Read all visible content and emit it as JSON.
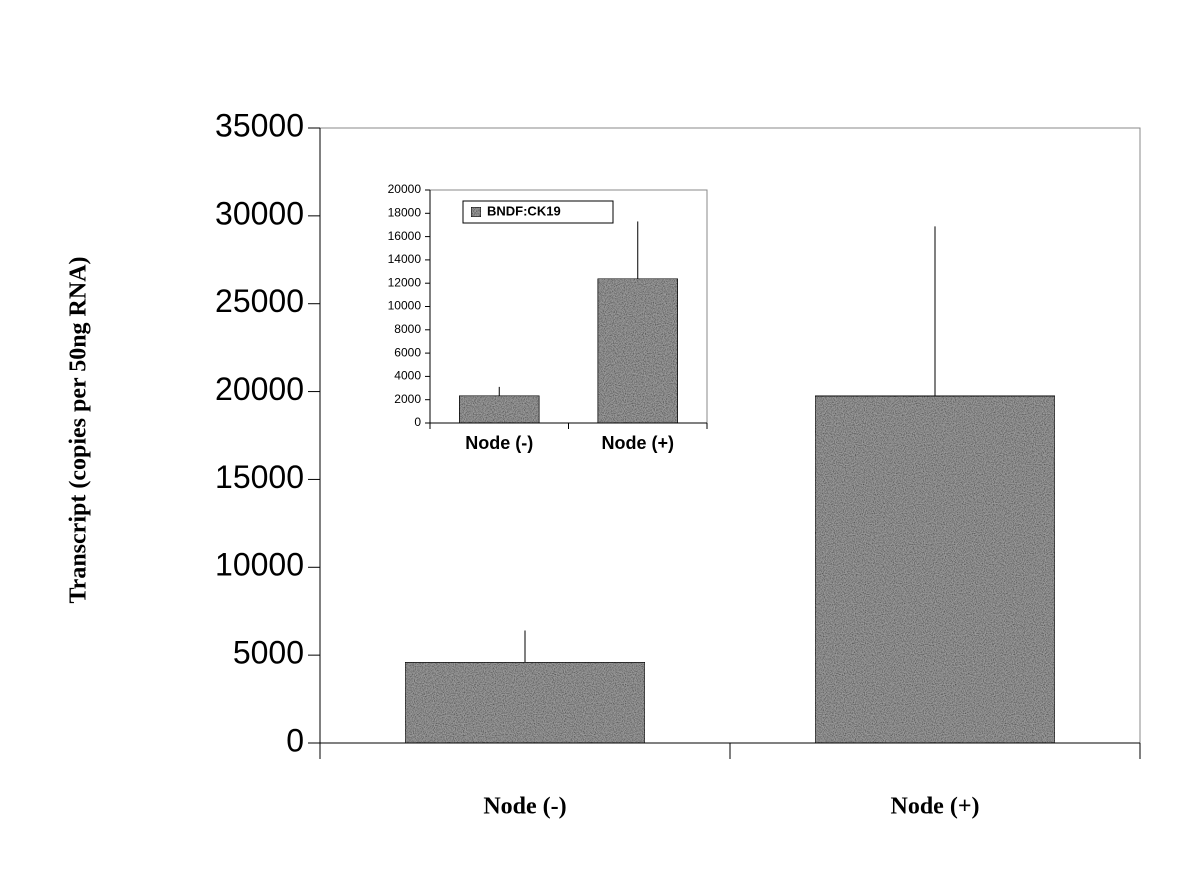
{
  "chart_data": [
    {
      "type": "bar",
      "y_label": "Transcript (copies per 50ng RNA)",
      "categories": [
        "Node (-)",
        "Node (+)"
      ],
      "values": [
        4600,
        19750
      ],
      "errors": [
        1800,
        9650
      ],
      "color": "#9a9a9a",
      "ylim": [
        0,
        35000
      ],
      "yticks": [
        0,
        5000,
        10000,
        15000,
        20000,
        25000,
        30000,
        35000
      ]
    },
    {
      "type": "bar",
      "categories": [
        "Node (-)",
        "Node (+)"
      ],
      "series": [
        {
          "name": "BNDF:CK19",
          "color": "#9a9a9a",
          "values": [
            2350,
            12400
          ],
          "errors": [
            750,
            4900
          ]
        }
      ],
      "ylim": [
        0,
        20000
      ],
      "yticks": [
        0,
        2000,
        4000,
        6000,
        8000,
        10000,
        12000,
        14000,
        16000,
        18000,
        20000
      ],
      "legend": "top-left"
    }
  ]
}
